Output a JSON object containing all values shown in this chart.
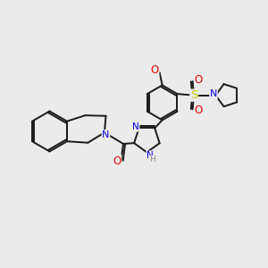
{
  "bg_color": "#ebebeb",
  "figsize": [
    3.0,
    3.0
  ],
  "dpi": 100,
  "bond_color": "#1a1a1a",
  "bond_width": 1.4,
  "atom_colors": {
    "N": "#0000ee",
    "O": "#ee0000",
    "S": "#cccc00",
    "H": "#888888",
    "C": "#1a1a1a"
  },
  "font_size": 7.5
}
